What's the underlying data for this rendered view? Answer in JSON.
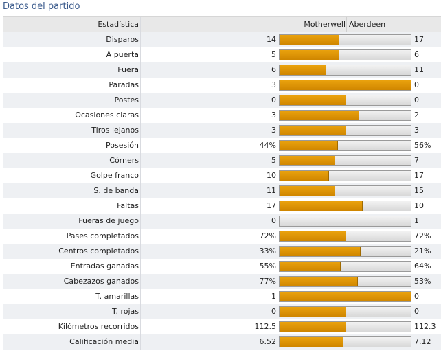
{
  "title": "Datos del partido",
  "header": {
    "stat": "Estadística",
    "home": "Motherwell",
    "away": "Aberdeen"
  },
  "colors": {
    "bar_fill": "#e09400",
    "bar_empty": "#e1e1e1",
    "title": "#3a5a8c"
  },
  "stats": [
    {
      "label": "Disparos",
      "home": "14",
      "away": "17",
      "home_share": 0.45
    },
    {
      "label": "A puerta",
      "home": "5",
      "away": "6",
      "home_share": 0.45
    },
    {
      "label": "Fuera",
      "home": "6",
      "away": "11",
      "home_share": 0.35
    },
    {
      "label": "Paradas",
      "home": "3",
      "away": "0",
      "home_share": 1.0
    },
    {
      "label": "Postes",
      "home": "0",
      "away": "0",
      "home_share": 0.5
    },
    {
      "label": "Ocasiones claras",
      "home": "3",
      "away": "2",
      "home_share": 0.6
    },
    {
      "label": "Tiros lejanos",
      "home": "3",
      "away": "3",
      "home_share": 0.5
    },
    {
      "label": "Posesión",
      "home": "44%",
      "away": "56%",
      "home_share": 0.44
    },
    {
      "label": "Córners",
      "home": "5",
      "away": "7",
      "home_share": 0.42
    },
    {
      "label": "Golpe franco",
      "home": "10",
      "away": "17",
      "home_share": 0.37
    },
    {
      "label": "S. de banda",
      "home": "11",
      "away": "15",
      "home_share": 0.42
    },
    {
      "label": "Faltas",
      "home": "17",
      "away": "10",
      "home_share": 0.63
    },
    {
      "label": "Fueras de juego",
      "home": "0",
      "away": "1",
      "home_share": 0.0
    },
    {
      "label": "Pases completados",
      "home": "72%",
      "away": "72%",
      "home_share": 0.5
    },
    {
      "label": "Centros completados",
      "home": "33%",
      "away": "21%",
      "home_share": 0.61
    },
    {
      "label": "Entradas ganadas",
      "home": "55%",
      "away": "64%",
      "home_share": 0.46
    },
    {
      "label": "Cabezazos ganados",
      "home": "77%",
      "away": "53%",
      "home_share": 0.59
    },
    {
      "label": "T. amarillas",
      "home": "1",
      "away": "0",
      "home_share": 1.0
    },
    {
      "label": "T. rojas",
      "home": "0",
      "away": "0",
      "home_share": 0.5
    },
    {
      "label": "Kilómetros recorridos",
      "home": "112.5",
      "away": "112.3",
      "home_share": 0.5
    },
    {
      "label": "Calificación media",
      "home": "6.52",
      "away": "7.12",
      "home_share": 0.48
    }
  ]
}
